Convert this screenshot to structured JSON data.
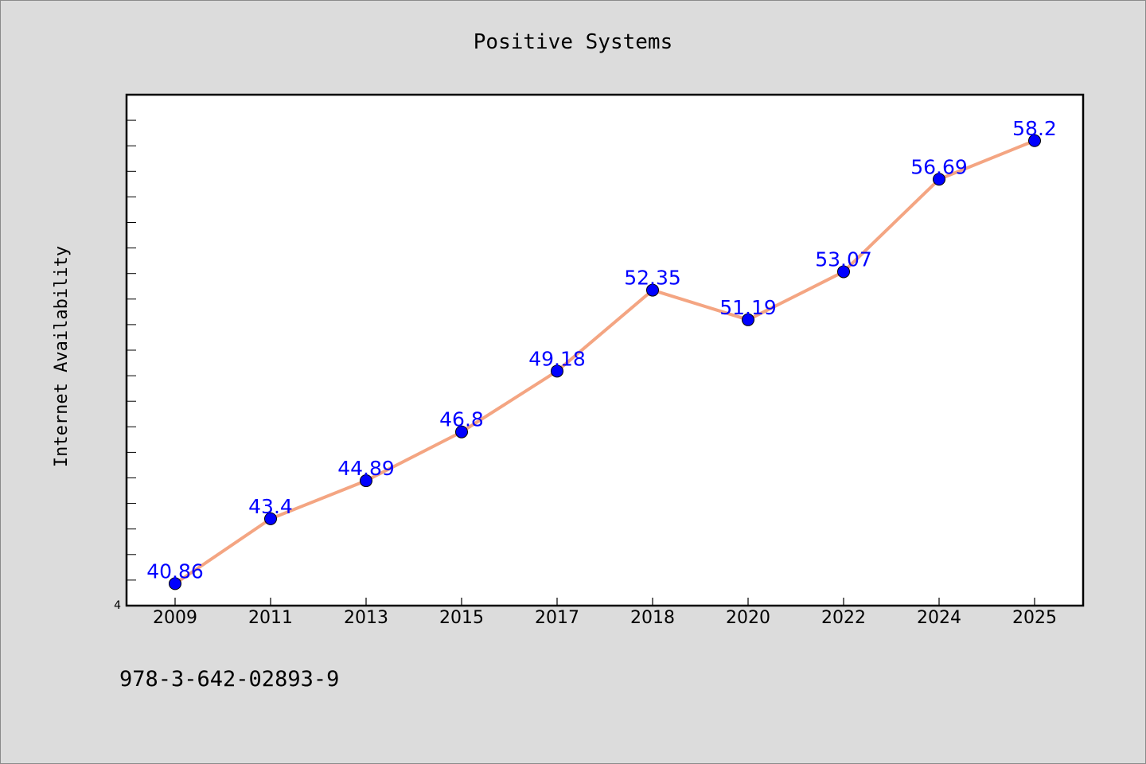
{
  "chart_data": {
    "type": "line",
    "title": "Positive Systems",
    "ylabel": "Internet Availability",
    "xlabel": "",
    "categories": [
      "2009",
      "2011",
      "2013",
      "2015",
      "2017",
      "2018",
      "2020",
      "2022",
      "2024",
      "2025"
    ],
    "series": [
      {
        "values": [
          40.86,
          43.4,
          44.89,
          46.8,
          49.18,
          52.35,
          51.19,
          53.07,
          56.69,
          58.2
        ],
        "labels": [
          "40.86",
          "43.4",
          "44.89",
          "46.8",
          "49.18",
          "52.35",
          "51.19",
          "53.07",
          "56.69",
          "58.2"
        ]
      }
    ],
    "ylim": [
      40,
      60
    ],
    "y_tick_label": "4",
    "grid": false,
    "legend": "none",
    "colors": {
      "line": "#f4a582",
      "marker": "#0000ff",
      "data_label": "#0000ff",
      "plot_background": "#ffffff",
      "figure_background": "#dcdcdc"
    }
  },
  "footer": {
    "text": "978-3-642-02893-9"
  }
}
